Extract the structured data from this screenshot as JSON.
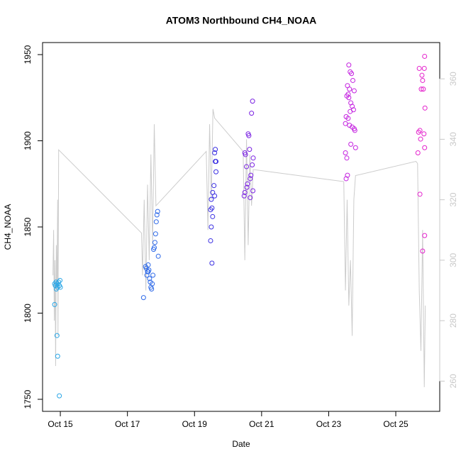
{
  "chart_data": {
    "type": "scatter",
    "title": "ATOM3 Northbound CH4_NOAA",
    "x_label": "Date",
    "y_label": "CH4_NOAA",
    "xlim": [
      14.47,
      26.31
    ],
    "xticks": [
      {
        "value": 15,
        "label": "Oct 15"
      },
      {
        "value": 17,
        "label": "Oct 17"
      },
      {
        "value": 19,
        "label": "Oct 19"
      },
      {
        "value": 21,
        "label": "Oct 21"
      },
      {
        "value": 23,
        "label": "Oct 23"
      },
      {
        "value": 25,
        "label": "Oct 25"
      }
    ],
    "ylim": [
      1743,
      1957
    ],
    "yticks": [
      1750,
      1800,
      1850,
      1900,
      1950
    ],
    "y2lim": [
      250,
      372
    ],
    "y2ticks": [
      260,
      280,
      300,
      320,
      340,
      360
    ],
    "y2_color": "#c8c8c8",
    "grid": false,
    "series": [
      {
        "color": "#2aa6e6",
        "x": [
          14.83,
          14.85,
          14.87,
          14.88,
          14.9,
          14.92,
          14.95,
          14.97,
          14.99,
          15.0,
          14.83,
          14.9,
          14.92,
          14.97
        ],
        "values": [
          1817,
          1816,
          1818,
          1814,
          1817,
          1815,
          1818,
          1816,
          1819,
          1815,
          1805,
          1787,
          1775,
          1752
        ]
      },
      {
        "color": "#2f6ae8",
        "x": [
          17.54,
          17.56,
          17.58,
          17.6,
          17.62,
          17.64,
          17.66,
          17.68,
          17.7,
          17.72,
          17.74,
          17.76,
          17.78,
          17.8,
          17.82,
          17.84,
          17.86,
          17.88,
          17.9,
          17.92,
          17.62,
          17.48
        ],
        "values": [
          1827,
          1826,
          1822,
          1824,
          1824,
          1825,
          1820,
          1818,
          1815,
          1814,
          1817,
          1822,
          1837,
          1838,
          1841,
          1846,
          1853,
          1857,
          1859,
          1833,
          1828,
          1809
        ]
      },
      {
        "color": "#3a2fe2",
        "x": [
          19.62,
          19.6,
          19.62,
          19.64,
          19.58,
          19.54,
          19.6,
          19.5,
          19.52,
          19.48,
          19.54,
          19.5,
          19.48,
          19.52,
          19.64
        ],
        "values": [
          1895,
          1893,
          1888,
          1882,
          1874,
          1870,
          1868,
          1866,
          1861,
          1860,
          1856,
          1850,
          1842,
          1829,
          1888
        ]
      },
      {
        "color": "#7a22e2",
        "x": [
          20.73,
          20.7,
          20.6,
          20.62,
          20.64,
          20.5,
          20.52,
          20.75,
          20.72,
          20.55,
          20.68,
          20.66,
          20.58,
          20.56,
          20.74,
          20.5,
          20.48,
          20.66
        ],
        "values": [
          1923,
          1916,
          1904,
          1903,
          1895,
          1893,
          1892,
          1890,
          1886,
          1885,
          1880,
          1878,
          1875,
          1873,
          1871,
          1870,
          1868,
          1867
        ]
      },
      {
        "color": "#c422e0",
        "x": [
          23.6,
          23.64,
          23.68,
          23.72,
          23.56,
          23.62,
          23.76,
          23.58,
          23.54,
          23.6,
          23.66,
          23.7,
          23.74,
          23.64,
          23.52,
          23.58,
          23.5,
          23.62,
          23.7,
          23.76,
          23.78,
          23.66,
          23.8,
          23.5,
          23.54,
          23.56,
          23.52
        ],
        "values": [
          1944,
          1940,
          1939,
          1935,
          1932,
          1930,
          1929,
          1927,
          1926,
          1925,
          1922,
          1920,
          1918,
          1917,
          1914,
          1913,
          1910,
          1909,
          1908,
          1907,
          1906,
          1898,
          1896,
          1893,
          1890,
          1880,
          1878
        ]
      },
      {
        "color": "#e421cc",
        "x": [
          25.86,
          25.7,
          25.85,
          25.78,
          25.8,
          25.76,
          25.82,
          25.87,
          25.72,
          25.68,
          25.84,
          25.74,
          25.86,
          25.66,
          25.72,
          25.86,
          25.8
        ],
        "values": [
          1949,
          1942,
          1942,
          1938,
          1935,
          1930,
          1930,
          1919,
          1906,
          1905,
          1904,
          1901,
          1896,
          1893,
          1869,
          1845,
          1836
        ]
      },
      {
        "type": "line",
        "axis": "y2",
        "color": "#cccccc",
        "x": [
          14.78,
          14.8,
          14.82,
          14.84,
          14.86,
          14.88,
          14.9,
          14.92,
          14.93,
          14.95,
          17.42,
          17.45,
          17.5,
          17.55,
          17.6,
          17.65,
          17.7,
          17.75,
          17.8,
          17.85,
          19.35,
          19.4,
          19.45,
          19.5,
          19.55,
          19.6,
          20.45,
          20.5,
          20.55,
          20.6,
          20.65,
          20.7,
          20.75,
          23.45,
          23.5,
          23.55,
          23.6,
          23.65,
          23.7,
          23.75,
          23.8,
          25.6,
          25.65,
          25.7,
          25.75,
          25.8,
          25.85,
          25.88
        ],
        "values": [
          295,
          310,
          280,
          300,
          265,
          305,
          290,
          320,
          275,
          336.5,
          309,
          295,
          320,
          290,
          325,
          300,
          335,
          305,
          345,
          318,
          336,
          310,
          345,
          320,
          350,
          347,
          336,
          300,
          340,
          305,
          335,
          318,
          330,
          326,
          290,
          320,
          285,
          300,
          275,
          320,
          328,
          332.7,
          332,
          290,
          270,
          310,
          258,
          285
        ]
      }
    ]
  }
}
